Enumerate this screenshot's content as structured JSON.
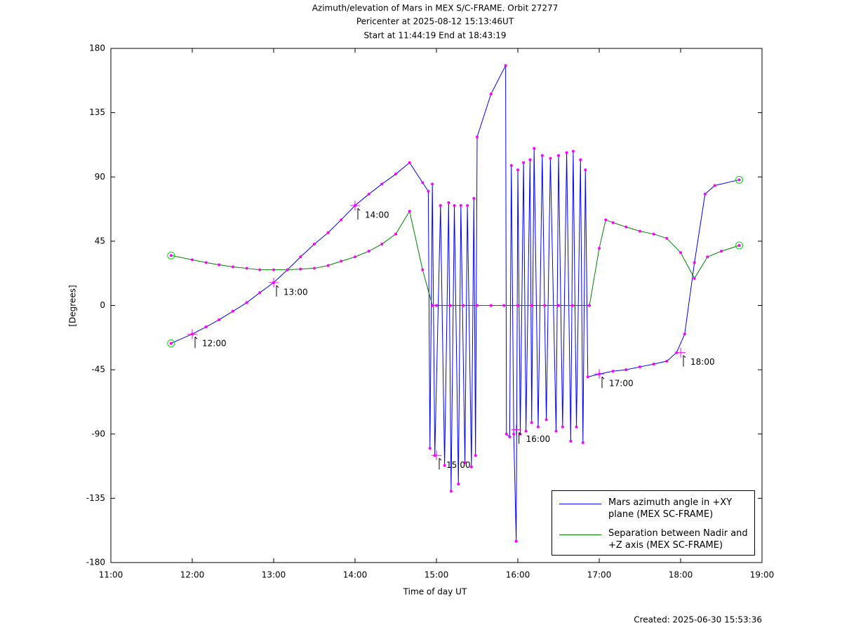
{
  "chart_data": {
    "type": "line",
    "title": "Azimuth/elevation of Mars in MEX S/C-FRAME.  Orbit 27277",
    "subtitle": [
      "Pericenter at 2025-08-12 15:13:46UT",
      "Start at 11:44:19 End at 18:43:19"
    ],
    "xlabel": "Time of day UT",
    "ylabel": "[Degrees]",
    "footer": "Created: 2025-06-30 15:53:36",
    "xlim": [
      11,
      19
    ],
    "xticks": [
      {
        "value": 11,
        "label": "11:00"
      },
      {
        "value": 12,
        "label": "12:00"
      },
      {
        "value": 13,
        "label": "13:00"
      },
      {
        "value": 14,
        "label": "14:00"
      },
      {
        "value": 15,
        "label": "15:00"
      },
      {
        "value": 16,
        "label": "16:00"
      },
      {
        "value": 17,
        "label": "17:00"
      },
      {
        "value": 18,
        "label": "18:00"
      },
      {
        "value": 19,
        "label": "19:00"
      }
    ],
    "ylim": [
      -180,
      180
    ],
    "yticks": [
      -180,
      -135,
      -90,
      -45,
      0,
      45,
      90,
      135,
      180
    ],
    "grid": false,
    "legend": "lower right",
    "marker_color": "#ff00ff",
    "series": [
      {
        "name": "Mars azimuth angle in +XY plane (MEX SC-FRAME)",
        "color": "#0000ff",
        "x": [
          11.74,
          12.0,
          12.17,
          12.33,
          12.5,
          12.67,
          12.83,
          13.0,
          13.17,
          13.33,
          13.5,
          13.67,
          13.83,
          14.0,
          14.17,
          14.33,
          14.5,
          14.67,
          14.83,
          14.9,
          14.92,
          14.95,
          14.98,
          15.05,
          15.1,
          15.15,
          15.18,
          15.22,
          15.27,
          15.3,
          15.35,
          15.38,
          15.43,
          15.46,
          15.48,
          15.5,
          15.67,
          15.85,
          15.86,
          15.9,
          15.92,
          15.95,
          15.98,
          16.0,
          16.03,
          16.07,
          16.1,
          16.15,
          16.17,
          16.2,
          16.25,
          16.3,
          16.35,
          16.4,
          16.47,
          16.5,
          16.55,
          16.6,
          16.65,
          16.68,
          16.72,
          16.77,
          16.8,
          16.83,
          16.86,
          17.0,
          17.17,
          17.33,
          17.5,
          17.67,
          17.83,
          17.95,
          18.05,
          18.17,
          18.3,
          18.42,
          18.72
        ],
        "values": [
          -26.5,
          -20,
          -15,
          -10,
          -4,
          2,
          9,
          16,
          25,
          34,
          43,
          51,
          60,
          70,
          78,
          85,
          92,
          100,
          86,
          80,
          -100,
          85,
          -105,
          70,
          -112,
          72,
          -130,
          70,
          -125,
          70,
          -110,
          70,
          -113,
          75,
          -105,
          118,
          148,
          168,
          -90,
          -92,
          98,
          -90,
          -165,
          95,
          -90,
          100,
          -88,
          102,
          -82,
          110,
          -85,
          105,
          -80,
          103,
          -88,
          105,
          -85,
          107,
          -95,
          108,
          -85,
          102,
          -96,
          95,
          -50,
          -48,
          -46,
          -45,
          -43,
          -41,
          -39,
          -33,
          -20,
          30,
          78,
          84,
          88
        ]
      },
      {
        "name": "Separation between Nadir and +Z axis (MEX SC-FRAME)",
        "color": "#008000",
        "x": [
          11.74,
          12.0,
          12.17,
          12.33,
          12.5,
          12.67,
          12.83,
          13.0,
          13.17,
          13.33,
          13.5,
          13.67,
          13.83,
          14.0,
          14.17,
          14.33,
          14.5,
          14.67,
          14.83,
          14.95,
          15.0,
          15.17,
          15.33,
          15.5,
          15.67,
          15.83,
          16.0,
          16.17,
          16.33,
          16.5,
          16.67,
          16.88,
          17.0,
          17.08,
          17.17,
          17.33,
          17.5,
          17.67,
          17.83,
          18.0,
          18.17,
          18.33,
          18.5,
          18.72
        ],
        "values": [
          35,
          32,
          30,
          28.5,
          27,
          26,
          25,
          25,
          25,
          25.5,
          26,
          28,
          31,
          34,
          38,
          43,
          50,
          66,
          25,
          0,
          0,
          0,
          0,
          0,
          0,
          0,
          0,
          0,
          0,
          0,
          0,
          0,
          40,
          60,
          58,
          55,
          52,
          50,
          47,
          37,
          19,
          34,
          38,
          42
        ]
      }
    ],
    "annotations": [
      {
        "text": "12:00",
        "x": 12.0,
        "y": -20
      },
      {
        "text": "13:00",
        "x": 13.0,
        "y": 16
      },
      {
        "text": "14:00",
        "x": 14.0,
        "y": 70
      },
      {
        "text": "15:00",
        "x": 15.0,
        "y": -105
      },
      {
        "text": "16:00",
        "x": 15.98,
        "y": -87
      },
      {
        "text": "17:00",
        "x": 17.0,
        "y": -48
      },
      {
        "text": "18:00",
        "x": 18.0,
        "y": -33
      }
    ]
  }
}
